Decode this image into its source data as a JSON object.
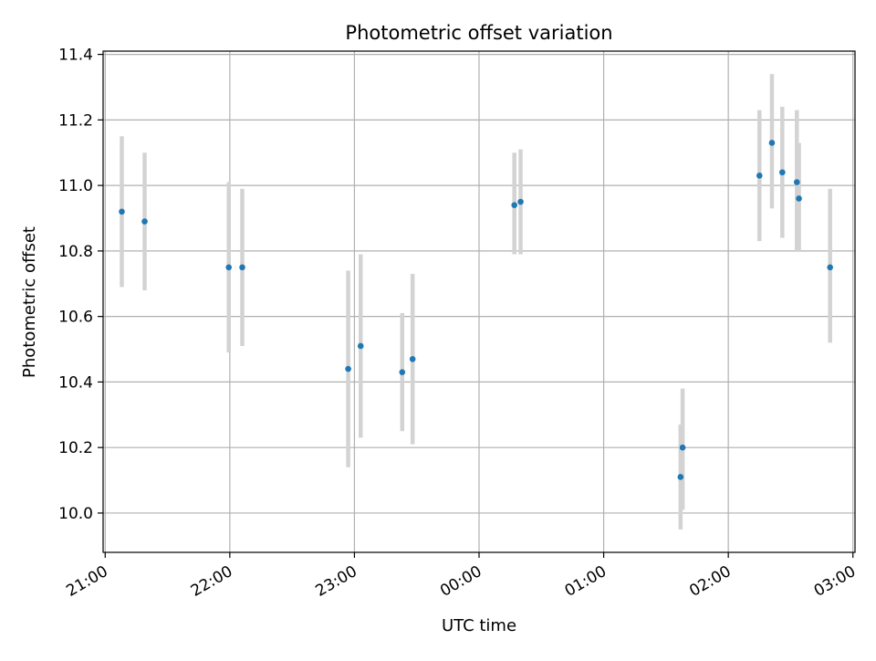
{
  "chart_data": {
    "type": "scatter",
    "title": "Photometric offset variation",
    "xlabel": "UTC time",
    "ylabel": "Photometric offset",
    "x_tick_labels": [
      "21:00",
      "22:00",
      "23:00",
      "00:00",
      "01:00",
      "02:00",
      "03:00"
    ],
    "y_tick_labels": [
      "10.0",
      "10.2",
      "10.4",
      "10.6",
      "10.8",
      "11.0",
      "11.2",
      "11.4"
    ],
    "xlim": [
      "20:59:00",
      "03:01:00"
    ],
    "ylim": [
      9.88,
      11.41
    ],
    "grid": true,
    "colors": {
      "point": "#1f77b4",
      "errorbar": "#d3d3d3",
      "grid": "#b0b0b0",
      "axes": "#000000"
    },
    "points": [
      {
        "x": "21:08:00",
        "y": 10.92,
        "yerr_low": 10.69,
        "yerr_high": 11.15
      },
      {
        "x": "21:19:00",
        "y": 10.89,
        "yerr_low": 10.68,
        "yerr_high": 11.1
      },
      {
        "x": "21:59:30",
        "y": 10.75,
        "yerr_low": 10.49,
        "yerr_high": 11.01
      },
      {
        "x": "22:06:00",
        "y": 10.75,
        "yerr_low": 10.51,
        "yerr_high": 10.99
      },
      {
        "x": "22:57:00",
        "y": 10.44,
        "yerr_low": 10.14,
        "yerr_high": 10.74
      },
      {
        "x": "23:03:00",
        "y": 10.51,
        "yerr_low": 10.23,
        "yerr_high": 10.79
      },
      {
        "x": "23:23:00",
        "y": 10.43,
        "yerr_low": 10.25,
        "yerr_high": 10.61
      },
      {
        "x": "23:28:00",
        "y": 10.47,
        "yerr_low": 10.21,
        "yerr_high": 10.73
      },
      {
        "x": "00:17:00",
        "y": 10.94,
        "yerr_low": 10.79,
        "yerr_high": 11.1
      },
      {
        "x": "00:20:00",
        "y": 10.95,
        "yerr_low": 10.79,
        "yerr_high": 11.11
      },
      {
        "x": "01:37:00",
        "y": 10.11,
        "yerr_low": 9.95,
        "yerr_high": 10.27
      },
      {
        "x": "01:38:00",
        "y": 10.2,
        "yerr_low": 10.01,
        "yerr_high": 10.38
      },
      {
        "x": "02:15:00",
        "y": 11.03,
        "yerr_low": 10.83,
        "yerr_high": 11.23
      },
      {
        "x": "02:21:00",
        "y": 11.13,
        "yerr_low": 10.93,
        "yerr_high": 11.34
      },
      {
        "x": "02:26:00",
        "y": 11.04,
        "yerr_low": 10.84,
        "yerr_high": 11.24
      },
      {
        "x": "02:33:00",
        "y": 11.01,
        "yerr_low": 10.8,
        "yerr_high": 11.23
      },
      {
        "x": "02:34:00",
        "y": 10.96,
        "yerr_low": 10.8,
        "yerr_high": 11.13
      },
      {
        "x": "02:49:00",
        "y": 10.75,
        "yerr_low": 10.52,
        "yerr_high": 10.99
      }
    ]
  }
}
